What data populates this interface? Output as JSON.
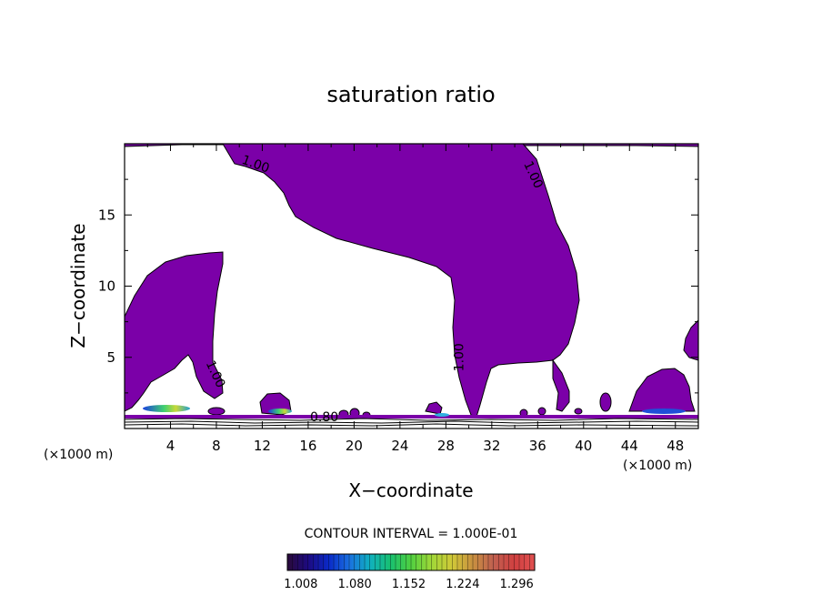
{
  "chart_data": {
    "type": "contour",
    "title": "saturation ratio",
    "xlabel": "X−coordinate",
    "ylabel": "Z−coordinate",
    "x_unit": "(×1000 m)",
    "y_unit": "(×1000 m)",
    "xlim": [
      0,
      50
    ],
    "ylim": [
      0,
      20
    ],
    "x_ticks": [
      "4",
      "8",
      "12",
      "16",
      "20",
      "24",
      "28",
      "32",
      "36",
      "40",
      "44",
      "48"
    ],
    "y_ticks": [
      "5",
      "10",
      "15"
    ],
    "x_tick_values": [
      4,
      8,
      12,
      16,
      20,
      24,
      28,
      32,
      36,
      40,
      44,
      48
    ],
    "y_tick_values": [
      5,
      10,
      15
    ],
    "contour_labels": [
      {
        "text": "1.00",
        "x": 11.3,
        "z": 18.3,
        "angle": 20
      },
      {
        "text": "1.00",
        "x": 35.3,
        "z": 17.7,
        "angle": 65
      },
      {
        "text": "1.00",
        "x": 29.5,
        "z": 5.0,
        "angle": -90
      },
      {
        "text": "1.00",
        "x": 7.6,
        "z": 3.7,
        "angle": 65
      },
      {
        "text": "0.80",
        "x": 17.4,
        "z": 0.5,
        "angle": 0
      }
    ],
    "contour_interval_text": "CONTOUR INTERVAL = 1.000E-01",
    "colorbar": {
      "tick_labels": [
        "1.008",
        "1.080",
        "1.152",
        "1.224",
        "1.296"
      ],
      "tick_values": [
        1.008,
        1.08,
        1.152,
        1.224,
        1.296
      ],
      "range": [
        0.99,
        1.32
      ],
      "colors": [
        "#2a0a3a",
        "#1d0a80",
        "#0a2ac8",
        "#1a70e0",
        "#10b0c0",
        "#18c070",
        "#50d040",
        "#a0d838",
        "#d0c838",
        "#c89040",
        "#c06050",
        "#d04040",
        "#e05050"
      ]
    },
    "fill_color": "#7b00a8"
  }
}
